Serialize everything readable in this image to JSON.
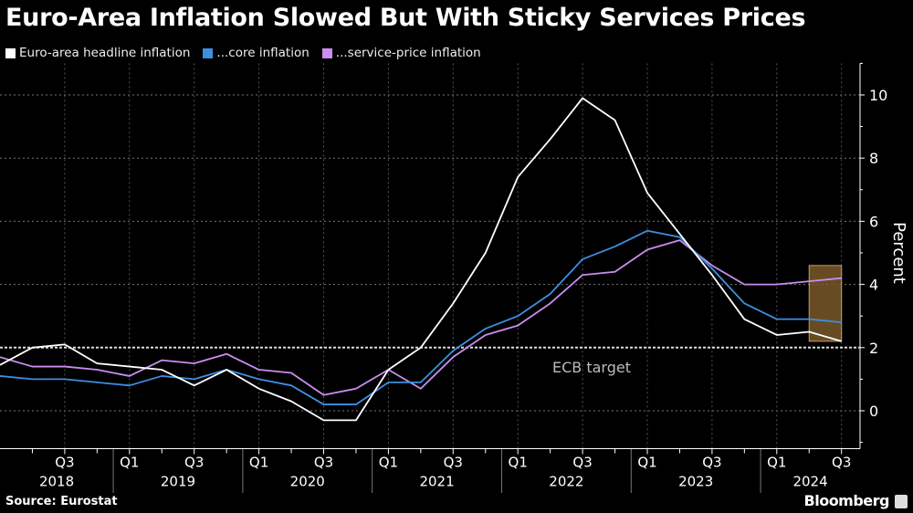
{
  "chart_data": {
    "type": "line",
    "title": "Euro-Area Inflation Slowed But With Sticky Services Prices",
    "ylabel": "Percent",
    "ylim": [
      -1.2,
      11
    ],
    "yticks": [
      0,
      2,
      4,
      6,
      8,
      10
    ],
    "grid": true,
    "legend_position": "top-left",
    "x": [
      "2018-Q1",
      "2018-Q2",
      "2018-Q3",
      "2018-Q4",
      "2019-Q1",
      "2019-Q2",
      "2019-Q3",
      "2019-Q4",
      "2020-Q1",
      "2020-Q2",
      "2020-Q3",
      "2020-Q4",
      "2021-Q1",
      "2021-Q2",
      "2021-Q3",
      "2021-Q4",
      "2022-Q1",
      "2022-Q2",
      "2022-Q3",
      "2022-Q4",
      "2023-Q1",
      "2023-Q2",
      "2023-Q3",
      "2023-Q4",
      "2024-Q1",
      "2024-Q2",
      "2024-Q3"
    ],
    "quarter_tick_labels": [
      "Q3",
      "Q1",
      "Q3",
      "Q1",
      "Q3",
      "Q1",
      "Q3",
      "Q1",
      "Q3",
      "Q1",
      "Q3",
      "Q1",
      "Q3"
    ],
    "year_labels": [
      "2018",
      "2019",
      "2020",
      "2021",
      "2022",
      "2023",
      "2024"
    ],
    "series": [
      {
        "name": "Euro-area headline inflation",
        "color": "#ffffff",
        "values": [
          1.45,
          2.0,
          2.1,
          1.5,
          1.4,
          1.3,
          0.8,
          1.3,
          0.7,
          0.3,
          -0.3,
          -0.3,
          1.3,
          2.0,
          3.4,
          5.0,
          7.4,
          8.6,
          9.9,
          9.2,
          6.9,
          5.6,
          4.3,
          2.9,
          2.4,
          2.5,
          2.2
        ]
      },
      {
        "name": "...core inflation",
        "color": "#3d8fe0",
        "values": [
          1.1,
          1.0,
          1.0,
          0.9,
          0.8,
          1.1,
          1.0,
          1.3,
          1.0,
          0.8,
          0.2,
          0.2,
          0.9,
          0.9,
          1.9,
          2.6,
          3.0,
          3.7,
          4.8,
          5.2,
          5.7,
          5.5,
          4.5,
          3.4,
          2.9,
          2.9,
          2.8
        ]
      },
      {
        "name": "...service-price inflation",
        "color": "#c98ef0",
        "values": [
          1.7,
          1.4,
          1.4,
          1.3,
          1.1,
          1.6,
          1.5,
          1.8,
          1.3,
          1.2,
          0.5,
          0.7,
          1.3,
          0.7,
          1.7,
          2.4,
          2.7,
          3.4,
          4.3,
          4.4,
          5.1,
          5.4,
          4.6,
          4.0,
          4.0,
          4.1,
          4.2
        ]
      }
    ],
    "annotations": [
      {
        "type": "hline",
        "y": 2,
        "label": "ECB target"
      },
      {
        "type": "highlight",
        "x_from": "2024-Q2",
        "x_to": "2024-Q3",
        "y_from": 2.2,
        "y_to": 4.6,
        "color": "#7a5a2a"
      }
    ]
  },
  "footer": {
    "source": "Source: Eurostat",
    "brand": "Bloomberg"
  }
}
